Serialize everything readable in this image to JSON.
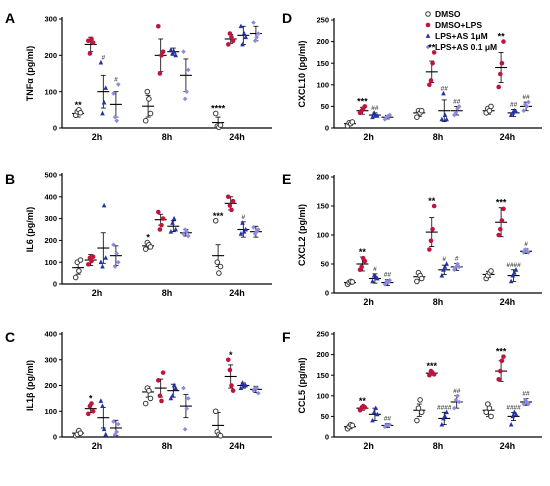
{
  "legend": [
    {
      "label": "DMSO",
      "color": "#3a3a3a",
      "marker": "circle-open"
    },
    {
      "label": "DMSO+LPS",
      "color": "#c0143c",
      "marker": "circle"
    },
    {
      "label": "LPS+AS 1μM",
      "color": "#2233aa",
      "marker": "triangle"
    },
    {
      "label": "LPS+AS 0.1 μM",
      "color": "#8a8ae0",
      "marker": "diamond"
    }
  ],
  "chart_data": [
    {
      "panel": "A",
      "type": "scatter",
      "ylabel": "TNFα (pg/ml)",
      "categories": [
        "2h",
        "8h",
        "24h"
      ],
      "ylim": [
        0,
        300
      ],
      "yticks": [
        0,
        100,
        200,
        300
      ],
      "means": [
        [
          40,
          230,
          100,
          65
        ],
        [
          60,
          200,
          210,
          145
        ],
        [
          15,
          245,
          255,
          260
        ]
      ],
      "errors": [
        [
          10,
          20,
          45,
          35
        ],
        [
          30,
          45,
          10,
          45
        ],
        [
          15,
          12,
          25,
          20
        ]
      ],
      "points": [
        [
          [
            35,
            45,
            50,
            42
          ],
          [
            240,
            205,
            245,
            235
          ],
          [
            180,
            40,
            70,
            110
          ],
          [
            95,
            30,
            20,
            120
          ]
        ],
        [
          [
            20,
            100,
            80,
            40
          ],
          [
            280,
            150,
            200,
            210
          ],
          [
            215,
            205,
            210,
            200
          ],
          [
            210,
            80,
            100,
            160
          ]
        ],
        [
          [
            40,
            5,
            2,
            8
          ],
          [
            230,
            260,
            250,
            240
          ],
          [
            280,
            230,
            260,
            250
          ],
          [
            290,
            240,
            250,
            260
          ]
        ]
      ],
      "significance": [
        [
          "**",
          "",
          "#",
          "#"
        ],
        [
          "",
          "",
          "",
          ""
        ],
        [
          "****",
          "",
          "",
          ""
        ]
      ]
    },
    {
      "panel": "B",
      "type": "scatter",
      "ylabel": "IL6 (pg/ml)",
      "categories": [
        "2h",
        "8h",
        "24h"
      ],
      "ylim": [
        0,
        500
      ],
      "yticks": [
        0,
        100,
        200,
        300,
        400,
        500
      ],
      "means": [
        [
          75,
          110,
          165,
          130
        ],
        [
          175,
          295,
          265,
          235
        ],
        [
          130,
          370,
          250,
          240
        ]
      ],
      "errors": [
        [
          30,
          25,
          70,
          45
        ],
        [
          15,
          25,
          25,
          15
        ],
        [
          50,
          30,
          35,
          25
        ]
      ],
      "points": [
        [
          [
            30,
            100,
            60,
            110
          ],
          [
            90,
            120,
            105,
            125
          ],
          [
            100,
            80,
            360,
            120
          ],
          [
            180,
            80,
            140,
            100
          ]
        ],
        [
          [
            160,
            190,
            180,
            170
          ],
          [
            330,
            250,
            270,
            300
          ],
          [
            240,
            280,
            300,
            250
          ],
          [
            230,
            250,
            240,
            220
          ]
        ],
        [
          [
            290,
            100,
            50,
            80
          ],
          [
            400,
            360,
            340,
            380
          ],
          [
            230,
            280,
            240,
            250
          ],
          [
            260,
            230,
            240,
            250
          ]
        ]
      ],
      "significance": [
        [
          "",
          "",
          "",
          ""
        ],
        [
          "*",
          "",
          "",
          ""
        ],
        [
          "***",
          "",
          "#",
          ""
        ]
      ]
    },
    {
      "panel": "C",
      "type": "scatter",
      "ylabel": "IL1β (pg/ml)",
      "categories": [
        "2h",
        "8h",
        "24h"
      ],
      "ylim": [
        0,
        400
      ],
      "yticks": [
        0,
        100,
        200,
        300,
        400
      ],
      "means": [
        [
          15,
          110,
          75,
          35
        ],
        [
          175,
          190,
          180,
          120
        ],
        [
          45,
          235,
          200,
          185
        ]
      ],
      "errors": [
        [
          8,
          15,
          40,
          30
        ],
        [
          20,
          35,
          25,
          45
        ],
        [
          50,
          45,
          10,
          12
        ]
      ],
      "points": [
        [
          [
            5,
            10,
            25,
            15
          ],
          [
            90,
            120,
            130,
            100
          ],
          [
            140,
            120,
            30,
            10
          ],
          [
            60,
            10,
            20,
            50
          ]
        ],
        [
          [
            130,
            190,
            180,
            150
          ],
          [
            220,
            160,
            140,
            250
          ],
          [
            150,
            160,
            200,
            190
          ],
          [
            190,
            30,
            110,
            150
          ]
        ],
        [
          [
            100,
            20,
            10,
            5
          ],
          [
            300,
            260,
            200,
            180
          ],
          [
            190,
            210,
            200,
            200
          ],
          [
            180,
            190,
            190,
            170
          ]
        ]
      ],
      "significance": [
        [
          "",
          "*",
          "",
          ""
        ],
        [
          "",
          "",
          "",
          ""
        ],
        [
          "",
          "*",
          "",
          ""
        ]
      ]
    },
    {
      "panel": "D",
      "type": "scatter",
      "ylabel": "CXCL10 (pg/ml)",
      "categories": [
        "2h",
        "8h",
        "24h"
      ],
      "ylim": [
        0,
        250
      ],
      "yticks": [
        0,
        50,
        100,
        150,
        200,
        250
      ],
      "means": [
        [
          10,
          40,
          30,
          25
        ],
        [
          35,
          130,
          40,
          40
        ],
        [
          40,
          140,
          35,
          50
        ]
      ],
      "errors": [
        [
          4,
          8,
          5,
          4
        ],
        [
          8,
          25,
          25,
          10
        ],
        [
          8,
          35,
          8,
          10
        ]
      ],
      "points": [
        [
          [
            5,
            12,
            10,
            14
          ],
          [
            35,
            40,
            45,
            50
          ],
          [
            25,
            35,
            30,
            28
          ],
          [
            20,
            25,
            28,
            30
          ]
        ],
        [
          [
            25,
            40,
            35,
            40
          ],
          [
            100,
            110,
            150,
            175
          ],
          [
            20,
            80,
            30,
            20
          ],
          [
            30,
            35,
            45,
            50
          ]
        ],
        [
          [
            35,
            45,
            40,
            50
          ],
          [
            95,
            125,
            150,
            200
          ],
          [
            30,
            35,
            40,
            38
          ],
          [
            40,
            55,
            50,
            60
          ]
        ]
      ],
      "significance": [
        [
          "",
          "***",
          "##",
          ""
        ],
        [
          "",
          "**",
          "##",
          "##"
        ],
        [
          "",
          "**",
          "##",
          "##"
        ]
      ]
    },
    {
      "panel": "E",
      "type": "scatter",
      "ylabel": "CXCL2 (pg/ml)",
      "categories": [
        "2h",
        "8h",
        "24h"
      ],
      "ylim": [
        0,
        200
      ],
      "yticks": [
        0,
        50,
        100,
        150,
        200
      ],
      "means": [
        [
          18,
          50,
          25,
          18
        ],
        [
          28,
          105,
          40,
          45
        ],
        [
          32,
          122,
          30,
          72
        ]
      ],
      "errors": [
        [
          3,
          12,
          8,
          5
        ],
        [
          6,
          25,
          8,
          6
        ],
        [
          5,
          25,
          10,
          4
        ]
      ],
      "points": [
        [
          [
            15,
            18,
            20,
            19
          ],
          [
            40,
            45,
            60,
            55
          ],
          [
            20,
            30,
            28,
            25
          ],
          [
            15,
            20,
            18,
            22
          ]
        ],
        [
          [
            20,
            35,
            30,
            25
          ],
          [
            75,
            90,
            110,
            150
          ],
          [
            30,
            40,
            45,
            50
          ],
          [
            40,
            45,
            50,
            45
          ]
        ],
        [
          [
            25,
            30,
            35,
            38
          ],
          [
            100,
            110,
            125,
            145
          ],
          [
            20,
            30,
            35,
            40
          ],
          [
            70,
            75,
            72,
            70
          ]
        ]
      ],
      "significance": [
        [
          "",
          "**",
          "#",
          "##"
        ],
        [
          "",
          "**",
          "#",
          "#"
        ],
        [
          "",
          "***",
          "####",
          "#"
        ]
      ]
    },
    {
      "panel": "F",
      "type": "scatter",
      "ylabel": "CCL5 (pg/ml)",
      "categories": [
        "2h",
        "8h",
        "24h"
      ],
      "ylim": [
        0,
        250
      ],
      "yticks": [
        0,
        50,
        100,
        150,
        200,
        250
      ],
      "means": [
        [
          25,
          70,
          55,
          28
        ],
        [
          65,
          155,
          45,
          85
        ],
        [
          65,
          160,
          50,
          85
        ]
      ],
      "errors": [
        [
          5,
          5,
          15,
          5
        ],
        [
          15,
          5,
          15,
          15
        ],
        [
          15,
          25,
          10,
          8
        ]
      ],
      "points": [
        [
          [
            20,
            25,
            30,
            28
          ],
          [
            65,
            70,
            75,
            72
          ],
          [
            40,
            60,
            70,
            55
          ],
          [
            25,
            30,
            28,
            30
          ]
        ],
        [
          [
            40,
            70,
            90,
            60
          ],
          [
            150,
            160,
            155,
            152
          ],
          [
            30,
            45,
            50,
            60
          ],
          [
            70,
            90,
            100,
            85
          ]
        ],
        [
          [
            60,
            80,
            70,
            50
          ],
          [
            140,
            160,
            185,
            195
          ],
          [
            30,
            50,
            60,
            55
          ],
          [
            80,
            90,
            85,
            80
          ]
        ]
      ],
      "significance": [
        [
          "",
          "**",
          "",
          "##"
        ],
        [
          "",
          "***",
          "####",
          "##"
        ],
        [
          "",
          "***",
          "####",
          "##"
        ]
      ]
    }
  ]
}
